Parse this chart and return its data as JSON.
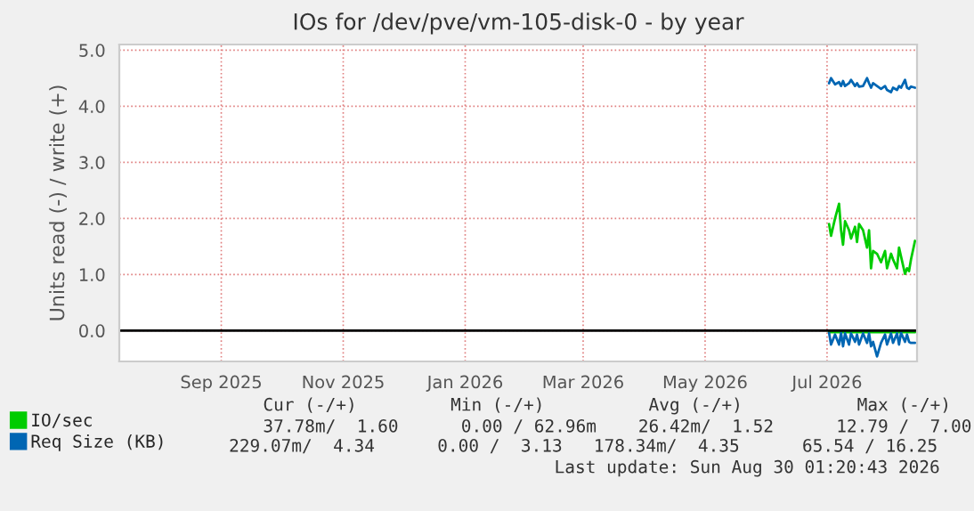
{
  "chart_data": {
    "type": "line",
    "title": "IOs for /dev/pve/vm-105-disk-0 - by year",
    "ylabel": "Units read (-) / write (+)",
    "x": [
      "2026-07-02",
      "2026-07-03",
      "2026-07-05",
      "2026-07-07",
      "2026-07-08",
      "2026-07-09",
      "2026-07-10",
      "2026-07-12",
      "2026-07-13",
      "2026-07-15",
      "2026-07-16",
      "2026-07-17",
      "2026-07-19",
      "2026-07-21",
      "2026-07-22",
      "2026-07-23",
      "2026-07-24",
      "2026-07-26",
      "2026-07-28",
      "2026-07-30",
      "2026-07-31",
      "2026-08-02",
      "2026-08-03",
      "2026-08-05",
      "2026-08-06",
      "2026-08-07",
      "2026-08-09",
      "2026-08-10",
      "2026-08-11",
      "2026-08-12",
      "2026-08-14"
    ],
    "series": [
      {
        "name": "IO/sec",
        "color": "#00cc00",
        "values": [
          1.9,
          1.69,
          2.0,
          2.26,
          1.79,
          1.53,
          1.95,
          1.79,
          1.64,
          1.85,
          1.58,
          1.9,
          1.79,
          1.48,
          1.79,
          1.11,
          1.42,
          1.37,
          1.22,
          1.42,
          1.11,
          1.37,
          1.27,
          1.11,
          1.48,
          1.32,
          1.01,
          1.11,
          1.06,
          1.27,
          1.6
        ]
      },
      {
        "name": "Req Size (KB)",
        "color": "#0066b3",
        "values": [
          4.41,
          4.5,
          4.39,
          4.43,
          4.36,
          4.45,
          4.36,
          4.41,
          4.47,
          4.36,
          4.41,
          4.35,
          4.36,
          4.5,
          4.41,
          4.33,
          4.41,
          4.36,
          4.31,
          4.36,
          4.29,
          4.25,
          4.33,
          4.29,
          4.36,
          4.33,
          4.47,
          4.33,
          4.31,
          4.35,
          4.33
        ]
      },
      {
        "color": "#00cc00",
        "values": [
          -0.03,
          -0.03,
          -0.03,
          -0.03,
          -0.03,
          -0.03,
          -0.03,
          -0.03,
          -0.03,
          -0.03,
          -0.03,
          -0.03,
          -0.03,
          -0.03,
          -0.03,
          -0.03,
          -0.03,
          -0.03,
          -0.03,
          -0.03,
          -0.03,
          -0.03,
          -0.03,
          -0.03,
          -0.03,
          -0.03,
          -0.03,
          -0.03,
          -0.03,
          -0.03,
          -0.03
        ]
      },
      {
        "color": "#0066b3",
        "values": [
          -0.04,
          -0.25,
          -0.07,
          -0.25,
          -0.04,
          -0.28,
          -0.05,
          -0.25,
          -0.05,
          -0.2,
          -0.07,
          -0.25,
          -0.05,
          -0.22,
          -0.05,
          -0.28,
          -0.2,
          -0.46,
          -0.22,
          -0.07,
          -0.25,
          -0.05,
          -0.22,
          -0.05,
          -0.25,
          -0.04,
          -0.2,
          -0.07,
          -0.2,
          -0.22,
          -0.22
        ]
      }
    ],
    "xlim": [
      "2025-07-12",
      "2026-08-15"
    ],
    "xticks": [
      {
        "value": "2025-09-01",
        "label": "Sep 2025"
      },
      {
        "value": "2025-11-01",
        "label": "Nov 2025"
      },
      {
        "value": "2026-01-01",
        "label": "Jan 2026"
      },
      {
        "value": "2026-03-01",
        "label": "Mar 2026"
      },
      {
        "value": "2026-05-01",
        "label": "May 2026"
      },
      {
        "value": "2026-07-01",
        "label": "Jul 2026"
      }
    ],
    "ylim": [
      -0.55,
      5.1
    ],
    "yticks": [
      {
        "value": 0,
        "label": "0.0"
      },
      {
        "value": 1,
        "label": "1.0"
      },
      {
        "value": 2,
        "label": "2.0"
      },
      {
        "value": 3,
        "label": "3.0"
      },
      {
        "value": 4,
        "label": "4.0"
      },
      {
        "value": 5,
        "label": "5.0"
      }
    ],
    "ref_lines": [
      {
        "axis": "y",
        "value": 0,
        "color": "#000000"
      }
    ],
    "grid": true,
    "legend": "bottom left",
    "marker": "none",
    "line_style": "solid",
    "annotations": [
      "Cur (-/+)         Min (-/+)          Avg (-/+)           Max (-/+)",
      "37.78m/  1.60      0.00 / 62.96m    26.42m/  1.52      12.79 /  7.00",
      "229.07m/  4.34      0.00 /  3.13   178.34m/  4.35      65.54 / 16.25",
      "Last update: Sun Aug 30 01:20:43 2026"
    ]
  }
}
